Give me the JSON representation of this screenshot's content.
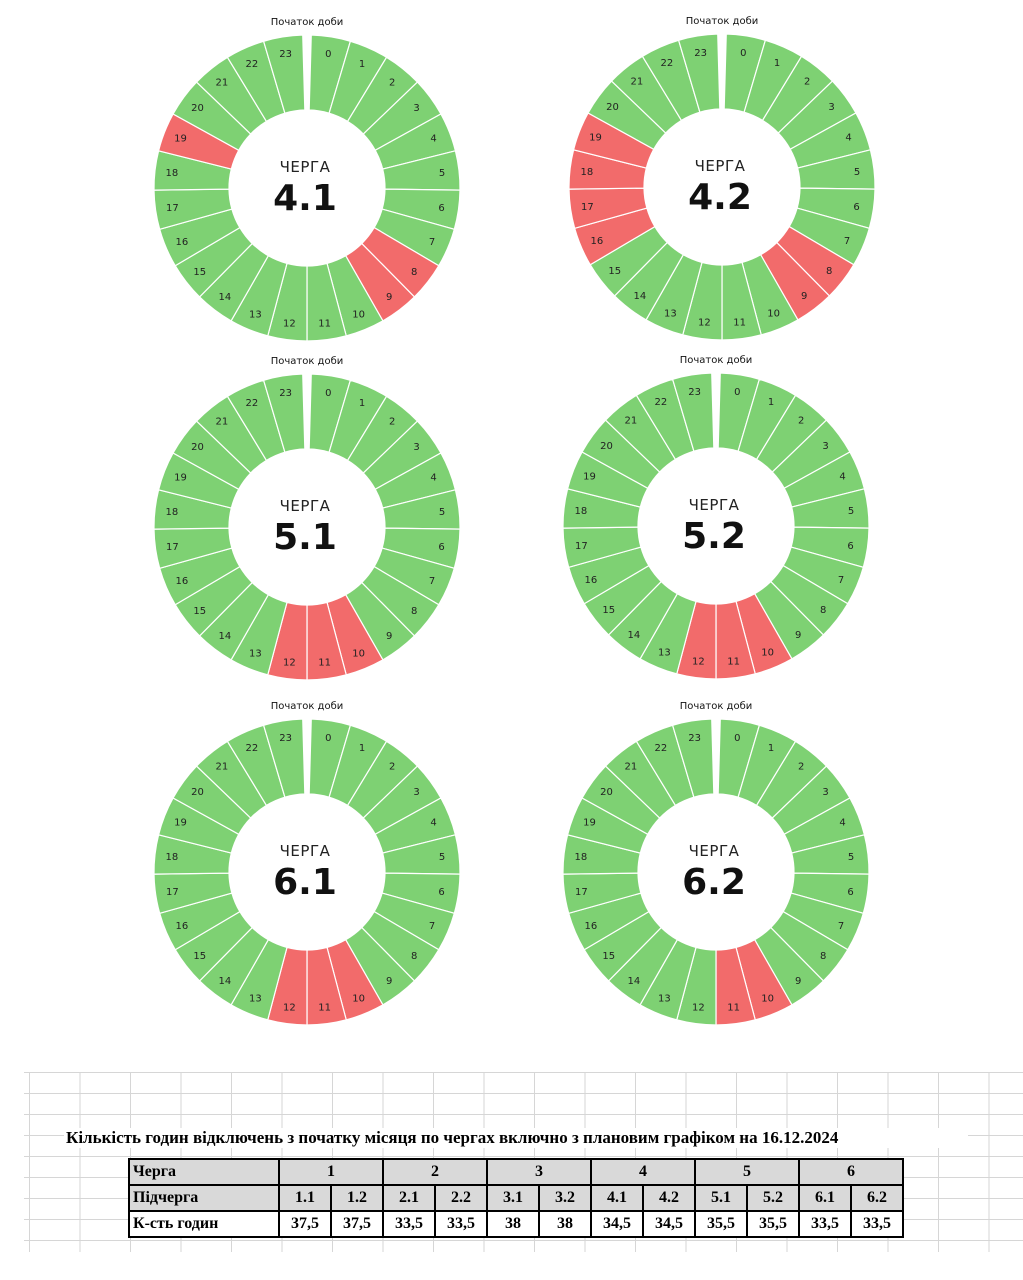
{
  "chart_data": [
    {
      "type": "pie",
      "title_word": "ЧЕРГА",
      "title_number": "4.1",
      "start_label": "Початок доби",
      "hours": [
        "0",
        "1",
        "2",
        "3",
        "4",
        "5",
        "6",
        "7",
        "8",
        "9",
        "10",
        "11",
        "12",
        "13",
        "14",
        "15",
        "16",
        "17",
        "18",
        "19",
        "20",
        "21",
        "22",
        "23"
      ],
      "off_hours": [
        8,
        9,
        19
      ],
      "colors": {
        "on": "#7ed173",
        "off": "#f26b6b"
      }
    },
    {
      "type": "pie",
      "title_word": "ЧЕРГА",
      "title_number": "4.2",
      "start_label": "Початок доби",
      "hours": [
        "0",
        "1",
        "2",
        "3",
        "4",
        "5",
        "6",
        "7",
        "8",
        "9",
        "10",
        "11",
        "12",
        "13",
        "14",
        "15",
        "16",
        "17",
        "18",
        "19",
        "20",
        "21",
        "22",
        "23"
      ],
      "off_hours": [
        8,
        9,
        16,
        17,
        18,
        19
      ],
      "colors": {
        "on": "#7ed173",
        "off": "#f26b6b"
      }
    },
    {
      "type": "pie",
      "title_word": "ЧЕРГА",
      "title_number": "5.1",
      "start_label": "Початок доби",
      "hours": [
        "0",
        "1",
        "2",
        "3",
        "4",
        "5",
        "6",
        "7",
        "8",
        "9",
        "10",
        "11",
        "12",
        "13",
        "14",
        "15",
        "16",
        "17",
        "18",
        "19",
        "20",
        "21",
        "22",
        "23"
      ],
      "off_hours": [
        10,
        11,
        12
      ],
      "colors": {
        "on": "#7ed173",
        "off": "#f26b6b"
      }
    },
    {
      "type": "pie",
      "title_word": "ЧЕРГА",
      "title_number": "5.2",
      "start_label": "Початок доби",
      "hours": [
        "0",
        "1",
        "2",
        "3",
        "4",
        "5",
        "6",
        "7",
        "8",
        "9",
        "10",
        "11",
        "12",
        "13",
        "14",
        "15",
        "16",
        "17",
        "18",
        "19",
        "20",
        "21",
        "22",
        "23"
      ],
      "off_hours": [
        10,
        11,
        12
      ],
      "colors": {
        "on": "#7ed173",
        "off": "#f26b6b"
      }
    },
    {
      "type": "pie",
      "title_word": "ЧЕРГА",
      "title_number": "6.1",
      "start_label": "Початок доби",
      "hours": [
        "0",
        "1",
        "2",
        "3",
        "4",
        "5",
        "6",
        "7",
        "8",
        "9",
        "10",
        "11",
        "12",
        "13",
        "14",
        "15",
        "16",
        "17",
        "18",
        "19",
        "20",
        "21",
        "22",
        "23"
      ],
      "off_hours": [
        10,
        11,
        12
      ],
      "colors": {
        "on": "#7ed173",
        "off": "#f26b6b"
      }
    },
    {
      "type": "pie",
      "title_word": "ЧЕРГА",
      "title_number": "6.2",
      "start_label": "Початок доби",
      "hours": [
        "0",
        "1",
        "2",
        "3",
        "4",
        "5",
        "6",
        "7",
        "8",
        "9",
        "10",
        "11",
        "12",
        "13",
        "14",
        "15",
        "16",
        "17",
        "18",
        "19",
        "20",
        "21",
        "22",
        "23"
      ],
      "off_hours": [
        10,
        11
      ],
      "colors": {
        "on": "#7ed173",
        "off": "#f26b6b"
      }
    }
  ],
  "table": {
    "title": "Кількість годин відключень з початку місяця по чергах включно з плановим графіком на 16.12.2024",
    "row_labels": {
      "queue": "Черга",
      "subqueue": "Підчерга",
      "hours": "К-сть годин"
    },
    "queues": [
      "1",
      "2",
      "3",
      "4",
      "5",
      "6"
    ],
    "subqueues": [
      "1.1",
      "1.2",
      "2.1",
      "2.2",
      "3.1",
      "3.2",
      "4.1",
      "4.2",
      "5.1",
      "5.2",
      "6.1",
      "6.2"
    ],
    "hours": [
      "37,5",
      "37,5",
      "33,5",
      "33,5",
      "38",
      "38",
      "34,5",
      "34,5",
      "35,5",
      "35,5",
      "33,5",
      "33,5"
    ]
  }
}
